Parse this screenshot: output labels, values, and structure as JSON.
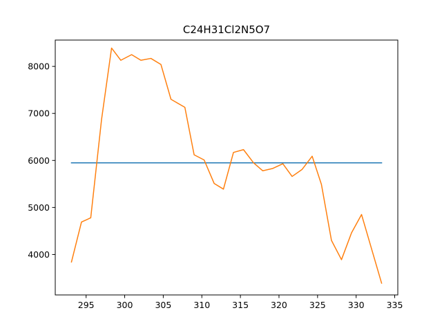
{
  "chart_data": {
    "type": "line",
    "title": "C24H31Cl2N5O7",
    "xlabel": "",
    "ylabel": "",
    "xlim": [
      291.0,
      335.4
    ],
    "ylim": [
      3140,
      8560
    ],
    "xticks": [
      295,
      300,
      305,
      310,
      315,
      320,
      325,
      330,
      335
    ],
    "yticks": [
      4000,
      5000,
      6000,
      7000,
      8000
    ],
    "grid": false,
    "series": [
      {
        "color": "#1f77b4",
        "x": [
          293.1,
          333.3
        ],
        "y": [
          5950,
          5950
        ]
      },
      {
        "color": "#ff7f0e",
        "x": [
          293.1,
          294.4,
          295.6,
          297.0,
          298.3,
          299.5,
          300.9,
          302.1,
          303.4,
          304.7,
          306.0,
          307.8,
          309.0,
          310.3,
          311.6,
          312.8,
          314.1,
          315.4,
          316.7,
          317.9,
          319.2,
          320.5,
          321.7,
          323.0,
          324.3,
          325.5,
          326.8,
          328.1,
          329.4,
          330.7,
          332.0,
          333.3
        ],
        "y": [
          3840,
          4690,
          4780,
          6870,
          8390,
          8130,
          8250,
          8130,
          8170,
          8040,
          7300,
          7130,
          6120,
          6010,
          5510,
          5390,
          6170,
          6230,
          5950,
          5780,
          5830,
          5930,
          5660,
          5810,
          6090,
          5490,
          4300,
          3890,
          4460,
          4850,
          4120,
          3390
        ]
      }
    ]
  }
}
